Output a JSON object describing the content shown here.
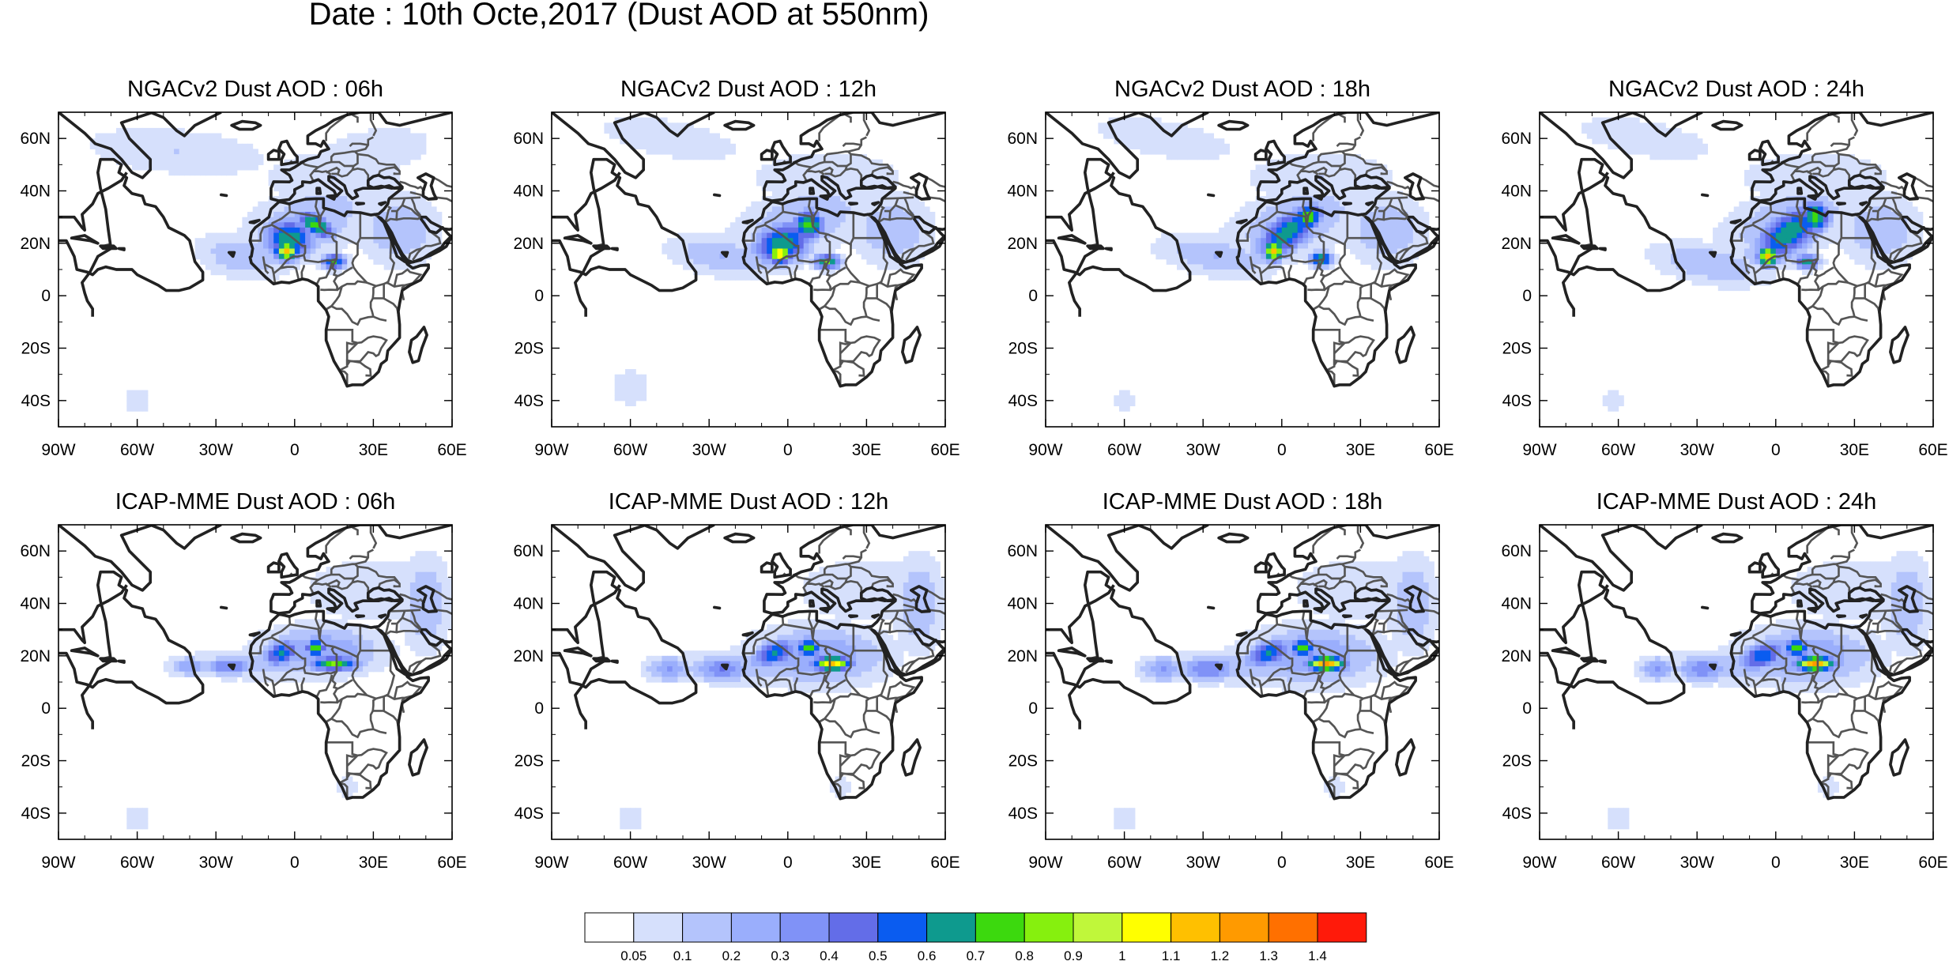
{
  "figure": {
    "title": "Date : 10th Octe,2017 (Dust AOD at 550nm)",
    "panels": [
      {
        "title": "NGACv2 Dust AOD : 06h",
        "model": "NGACv2",
        "hour": 6
      },
      {
        "title": "NGACv2 Dust AOD : 12h",
        "model": "NGACv2",
        "hour": 12
      },
      {
        "title": "NGACv2 Dust AOD : 18h",
        "model": "NGACv2",
        "hour": 18
      },
      {
        "title": "NGACv2 Dust AOD : 24h",
        "model": "NGACv2",
        "hour": 24
      },
      {
        "title": "ICAP-MME Dust AOD : 06h",
        "model": "ICAP-MME",
        "hour": 6
      },
      {
        "title": "ICAP-MME Dust AOD : 12h",
        "model": "ICAP-MME",
        "hour": 12
      },
      {
        "title": "ICAP-MME Dust AOD : 18h",
        "model": "ICAP-MME",
        "hour": 18
      },
      {
        "title": "ICAP-MME Dust AOD : 24h",
        "model": "ICAP-MME",
        "hour": 24
      }
    ],
    "map_extent": {
      "lon": [
        -90,
        60
      ],
      "lat": [
        -50,
        70
      ]
    },
    "lon_ticks": [
      {
        "value": -90,
        "label": "90W"
      },
      {
        "value": -60,
        "label": "60W"
      },
      {
        "value": -30,
        "label": "30W"
      },
      {
        "value": 0,
        "label": "0"
      },
      {
        "value": 30,
        "label": "30E"
      },
      {
        "value": 60,
        "label": "60E"
      }
    ],
    "lat_ticks": [
      {
        "value": 60,
        "label": "60N"
      },
      {
        "value": 40,
        "label": "40N"
      },
      {
        "value": 20,
        "label": "20N"
      },
      {
        "value": 0,
        "label": "0"
      },
      {
        "value": -20,
        "label": "20S"
      },
      {
        "value": -40,
        "label": "40S"
      }
    ],
    "colorbar": {
      "levels": [
        "0.05",
        "0.1",
        "0.2",
        "0.3",
        "0.4",
        "0.5",
        "0.6",
        "0.7",
        "0.8",
        "0.9",
        "1",
        "1.1",
        "1.2",
        "1.3",
        "1.4"
      ],
      "colors": [
        "#ffffff",
        "#d6e0fc",
        "#b4c4fc",
        "#9aaefc",
        "#8092f7",
        "#636de8",
        "#0a5cf0",
        "#0e9a8e",
        "#3cd90e",
        "#86f00e",
        "#c0f73a",
        "#ffff00",
        "#ffc000",
        "#ff9a00",
        "#ff7000",
        "#ff1a0a"
      ]
    }
  }
}
